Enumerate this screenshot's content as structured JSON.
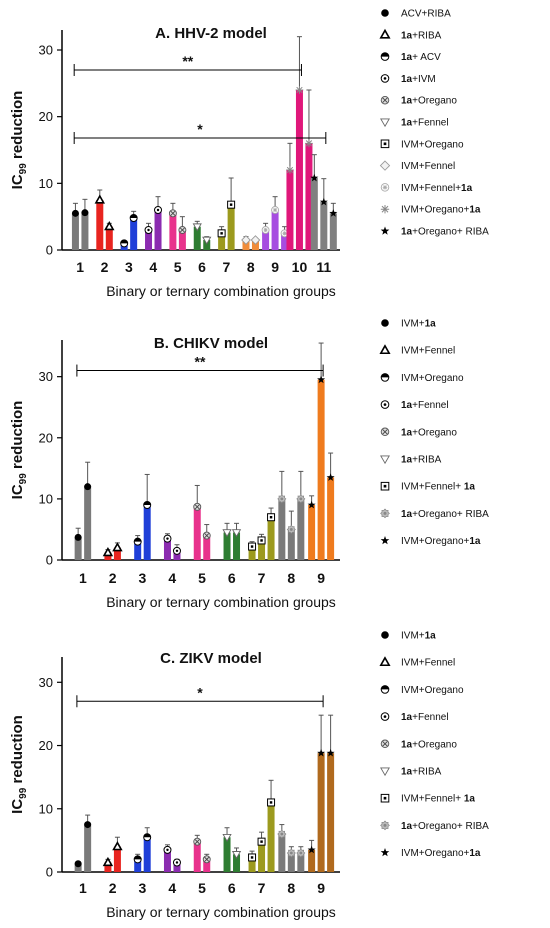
{
  "chart_data": [
    {
      "type": "bar",
      "title": "A. HHV-2 model",
      "xlabel": "Binary or ternary combination groups",
      "ylabel": "IC99 reduction",
      "ylim": [
        0,
        33
      ],
      "yticks": [
        0,
        10,
        20,
        30
      ],
      "x_ticks": [
        "1",
        "2",
        "3",
        "4",
        "5",
        "6",
        "7",
        "8",
        "9",
        "10",
        "11"
      ],
      "groups": [
        {
          "label": "1",
          "color": "#7a7a7a",
          "bars": [
            {
              "value": 5.5,
              "error": 1.5,
              "marker": "filled-circle"
            },
            {
              "value": 5.6,
              "error": 2.0,
              "marker": "filled-circle"
            }
          ]
        },
        {
          "label": "2",
          "color": "#e8241f",
          "bars": [
            {
              "value": 7.5,
              "error": 1.5,
              "marker": "open-triangle"
            },
            {
              "value": 3.5,
              "error": 0.5,
              "marker": "open-triangle"
            }
          ]
        },
        {
          "label": "3",
          "color": "#1f3fd8",
          "bars": [
            {
              "value": 1.0,
              "error": 0.3,
              "marker": "half-circle"
            },
            {
              "value": 4.8,
              "error": 1.0,
              "marker": "half-circle"
            }
          ]
        },
        {
          "label": "4",
          "color": "#8b2cb0",
          "bars": [
            {
              "value": 3.0,
              "error": 1.0,
              "marker": "dot-circle"
            },
            {
              "value": 6.0,
              "error": 2.0,
              "marker": "dot-circle"
            }
          ]
        },
        {
          "label": "5",
          "color": "#e8328c",
          "bars": [
            {
              "value": 5.5,
              "error": 1.5,
              "marker": "x-circle"
            },
            {
              "value": 3.0,
              "error": 2.0,
              "marker": "x-circle"
            }
          ]
        },
        {
          "label": "6",
          "color": "#2e7d32",
          "bars": [
            {
              "value": 3.5,
              "error": 0.8,
              "marker": "open-down-triangle"
            },
            {
              "value": 1.5,
              "error": 0.5,
              "marker": "open-down-triangle"
            }
          ]
        },
        {
          "label": "7",
          "color": "#9c9a1e",
          "bars": [
            {
              "value": 2.5,
              "error": 1.0,
              "marker": "dot-square"
            },
            {
              "value": 6.8,
              "error": 4.0,
              "marker": "dot-square"
            }
          ]
        },
        {
          "label": "8",
          "color": "#f08c3a",
          "bars": [
            {
              "value": 1.5,
              "error": 0.5,
              "marker": "open-diamond"
            },
            {
              "value": 1.5,
              "error": 0.3,
              "marker": "open-diamond"
            }
          ]
        },
        {
          "label": "9",
          "color": "#a64de0",
          "bars": [
            {
              "value": 3.0,
              "error": 1.0,
              "marker": "star-circle"
            },
            {
              "value": 6.0,
              "error": 2.0,
              "marker": "star-circle"
            },
            {
              "value": 2.5,
              "error": 1.0,
              "marker": "star-circle"
            }
          ]
        },
        {
          "label": "10",
          "color": "#e0177a",
          "bars": [
            {
              "value": 12.0,
              "error": 4.0,
              "marker": "asterisk"
            },
            {
              "value": 24.0,
              "error": 8.0,
              "marker": "asterisk"
            },
            {
              "value": 16.0,
              "error": 8.0,
              "marker": "asterisk"
            }
          ]
        },
        {
          "label": "11",
          "color": "#808080",
          "bars": [
            {
              "value": 10.8,
              "error": 3.5,
              "marker": "star"
            },
            {
              "value": 7.2,
              "error": 3.5,
              "marker": "star"
            },
            {
              "value": 5.5,
              "error": 1.5,
              "marker": "star"
            }
          ]
        }
      ],
      "significance": [
        {
          "label": "**",
          "from_group": 0,
          "to_group": 9,
          "y": 27
        },
        {
          "label": "*",
          "from_group": 0,
          "to_group": 10,
          "y": 16.8
        }
      ],
      "legend_position": "right",
      "legend": [
        {
          "label": "ACV+RIBA",
          "marker": "filled-circle"
        },
        {
          "label": "1a+RIBA",
          "marker": "open-triangle"
        },
        {
          "label": "1a+ ACV",
          "marker": "half-circle"
        },
        {
          "label": "1a+IVM",
          "marker": "dot-circle"
        },
        {
          "label": "1a+Oregano",
          "marker": "x-circle"
        },
        {
          "label": "1a+Fennel",
          "marker": "open-down-triangle"
        },
        {
          "label": "IVM+Oregano",
          "marker": "dot-square"
        },
        {
          "label": "IVM+Fennel",
          "marker": "open-diamond"
        },
        {
          "label": "IVM+Fennel+1a",
          "marker": "star-circle"
        },
        {
          "label": "IVM+Oregano+1a",
          "marker": "asterisk"
        },
        {
          "label": "1a+Oregano+ RIBA",
          "marker": "star"
        }
      ]
    },
    {
      "type": "bar",
      "title": "B. CHIKV model",
      "xlabel": "Binary or ternary combination groups",
      "ylabel": "IC99 reduction",
      "ylim": [
        0,
        36
      ],
      "yticks": [
        0,
        10,
        20,
        30
      ],
      "x_ticks": [
        "1",
        "2",
        "3",
        "4",
        "5",
        "6",
        "7",
        "8",
        "9"
      ],
      "groups": [
        {
          "label": "1",
          "color": "#7a7a7a",
          "bars": [
            {
              "value": 3.7,
              "error": 1.5,
              "marker": "filled-circle"
            },
            {
              "value": 12.0,
              "error": 4.0,
              "marker": "filled-circle"
            }
          ]
        },
        {
          "label": "2",
          "color": "#e8241f",
          "bars": [
            {
              "value": 1.2,
              "error": 0.5,
              "marker": "open-triangle"
            },
            {
              "value": 2.0,
              "error": 0.8,
              "marker": "open-triangle"
            }
          ]
        },
        {
          "label": "3",
          "color": "#1f3fd8",
          "bars": [
            {
              "value": 3.0,
              "error": 1.0,
              "marker": "half-circle"
            },
            {
              "value": 9.0,
              "error": 5.0,
              "marker": "half-circle"
            }
          ]
        },
        {
          "label": "4",
          "color": "#8b2cb0",
          "bars": [
            {
              "value": 3.5,
              "error": 0.8,
              "marker": "dot-circle"
            },
            {
              "value": 1.5,
              "error": 1.0,
              "marker": "dot-circle"
            }
          ]
        },
        {
          "label": "5",
          "color": "#e8328c",
          "bars": [
            {
              "value": 8.7,
              "error": 3.5,
              "marker": "x-circle"
            },
            {
              "value": 4.0,
              "error": 1.8,
              "marker": "x-circle"
            }
          ]
        },
        {
          "label": "6",
          "color": "#2e7d32",
          "bars": [
            {
              "value": 4.5,
              "error": 1.5,
              "marker": "open-down-triangle"
            },
            {
              "value": 4.5,
              "error": 1.5,
              "marker": "open-down-triangle"
            }
          ]
        },
        {
          "label": "7",
          "color": "#9c9a1e",
          "bars": [
            {
              "value": 2.2,
              "error": 0.8,
              "marker": "dot-square"
            },
            {
              "value": 3.2,
              "error": 1.0,
              "marker": "dot-square"
            },
            {
              "value": 7.0,
              "error": 1.5,
              "marker": "dot-square"
            }
          ]
        },
        {
          "label": "8",
          "color": "#7a7a7a",
          "bars": [
            {
              "value": 10.0,
              "error": 4.5,
              "marker": "gear"
            },
            {
              "value": 5.0,
              "error": 3.0,
              "marker": "gear"
            },
            {
              "value": 10.0,
              "error": 4.5,
              "marker": "gear"
            }
          ]
        },
        {
          "label": "9",
          "color": "#ef7b1e",
          "bars": [
            {
              "value": 9.0,
              "error": 1.5,
              "marker": "star"
            },
            {
              "value": 29.5,
              "error": 6.0,
              "marker": "star"
            },
            {
              "value": 13.5,
              "error": 4.0,
              "marker": "star"
            }
          ]
        }
      ],
      "significance": [
        {
          "label": "**",
          "from_group": 0,
          "to_group": 8,
          "y": 31
        }
      ],
      "legend_position": "right",
      "legend": [
        {
          "label": "IVM+1a",
          "marker": "filled-circle"
        },
        {
          "label": "IVM+Fennel",
          "marker": "open-triangle"
        },
        {
          "label": "IVM+Oregano",
          "marker": "half-circle"
        },
        {
          "label": "1a+Fennel",
          "marker": "dot-circle"
        },
        {
          "label": "1a+Oregano",
          "marker": "x-circle"
        },
        {
          "label": "1a+RIBA",
          "marker": "open-down-triangle"
        },
        {
          "label": "IVM+Fennel+ 1a",
          "marker": "dot-square"
        },
        {
          "label": "1a+Oregano+ RIBA",
          "marker": "gear"
        },
        {
          "label": "IVM+Oregano+1a",
          "marker": "star"
        }
      ]
    },
    {
      "type": "bar",
      "title": "C. ZIKV model",
      "xlabel": "Binary or ternary combination groups",
      "ylabel": "IC99 reduction",
      "ylim": [
        0,
        34
      ],
      "yticks": [
        0,
        10,
        20,
        30
      ],
      "x_ticks": [
        "1",
        "2",
        "3",
        "4",
        "5",
        "6",
        "7",
        "8",
        "9"
      ],
      "groups": [
        {
          "label": "1",
          "color": "#7a7a7a",
          "bars": [
            {
              "value": 1.3,
              "error": 0.3,
              "marker": "filled-circle"
            },
            {
              "value": 7.5,
              "error": 1.5,
              "marker": "filled-circle"
            }
          ]
        },
        {
          "label": "2",
          "color": "#e8241f",
          "bars": [
            {
              "value": 1.5,
              "error": 0.5,
              "marker": "open-triangle"
            },
            {
              "value": 4.0,
              "error": 1.5,
              "marker": "open-triangle"
            }
          ]
        },
        {
          "label": "3",
          "color": "#1f3fd8",
          "bars": [
            {
              "value": 2.0,
              "error": 0.8,
              "marker": "half-circle"
            },
            {
              "value": 5.5,
              "error": 1.5,
              "marker": "half-circle"
            }
          ]
        },
        {
          "label": "4",
          "color": "#8b2cb0",
          "bars": [
            {
              "value": 3.5,
              "error": 0.8,
              "marker": "dot-circle"
            },
            {
              "value": 1.5,
              "error": 0.5,
              "marker": "dot-circle"
            }
          ]
        },
        {
          "label": "5",
          "color": "#e8328c",
          "bars": [
            {
              "value": 4.8,
              "error": 1.0,
              "marker": "x-circle"
            },
            {
              "value": 2.0,
              "error": 0.8,
              "marker": "x-circle"
            }
          ]
        },
        {
          "label": "6",
          "color": "#2e7d32",
          "bars": [
            {
              "value": 5.5,
              "error": 1.5,
              "marker": "open-down-triangle"
            },
            {
              "value": 2.8,
              "error": 1.0,
              "marker": "open-down-triangle"
            }
          ]
        },
        {
          "label": "7",
          "color": "#9c9a1e",
          "bars": [
            {
              "value": 2.3,
              "error": 1.0,
              "marker": "dot-square"
            },
            {
              "value": 4.8,
              "error": 1.5,
              "marker": "dot-square"
            },
            {
              "value": 11.0,
              "error": 3.5,
              "marker": "dot-square"
            }
          ]
        },
        {
          "label": "8",
          "color": "#7a7a7a",
          "bars": [
            {
              "value": 6.0,
              "error": 1.5,
              "marker": "gear"
            },
            {
              "value": 3.0,
              "error": 1.0,
              "marker": "gear"
            },
            {
              "value": 3.0,
              "error": 1.0,
              "marker": "gear"
            }
          ]
        },
        {
          "label": "9",
          "color": "#b06a1e",
          "bars": [
            {
              "value": 3.5,
              "error": 1.5,
              "marker": "star"
            },
            {
              "value": 18.8,
              "error": 6.0,
              "marker": "star"
            },
            {
              "value": 18.8,
              "error": 6.0,
              "marker": "star"
            }
          ]
        }
      ],
      "significance": [
        {
          "label": "*",
          "from_group": 0,
          "to_group": 8,
          "y": 27
        }
      ],
      "legend_position": "right",
      "legend": [
        {
          "label": "IVM+1a",
          "marker": "filled-circle"
        },
        {
          "label": "IVM+Fennel",
          "marker": "open-triangle"
        },
        {
          "label": "IVM+Oregano",
          "marker": "half-circle"
        },
        {
          "label": "1a+Fennel",
          "marker": "dot-circle"
        },
        {
          "label": "1a+Oregano",
          "marker": "x-circle"
        },
        {
          "label": "1a+RIBA",
          "marker": "open-down-triangle"
        },
        {
          "label": "IVM+Fennel+ 1a",
          "marker": "dot-square"
        },
        {
          "label": "1a+Oregano+ RIBA",
          "marker": "gear"
        },
        {
          "label": "IVM+Oregano+1a",
          "marker": "star"
        }
      ]
    }
  ]
}
